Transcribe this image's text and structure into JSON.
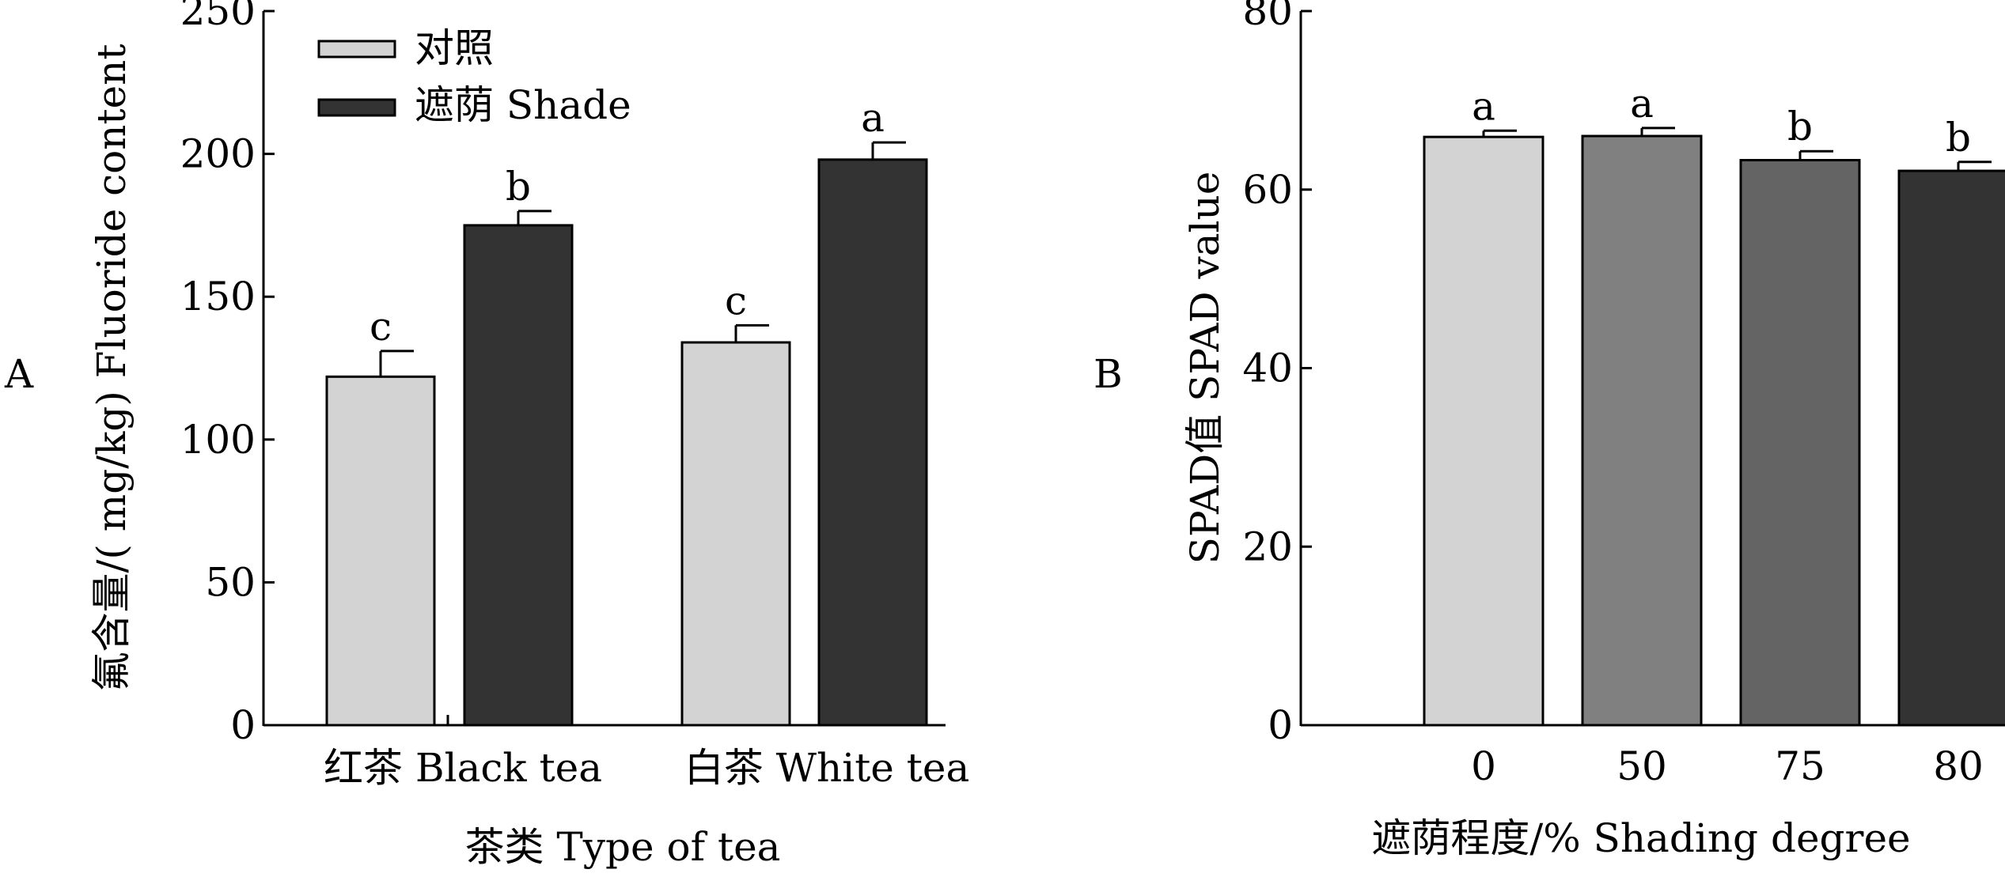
{
  "panels": {
    "a": {
      "label": "A"
    },
    "b": {
      "label": "B"
    }
  },
  "colors": {
    "control": "#d3d3d3",
    "shade": "#333333",
    "shade50": "#808080",
    "shade75": "#646464",
    "shade80": "#333333"
  },
  "chart_data": [
    {
      "type": "bar",
      "panel": "A",
      "xlabel": "茶类 Type of tea",
      "ylabel": "氟含量/( mg/kg)  Fluoride content",
      "ylim": [
        0,
        250
      ],
      "yticks": [
        0,
        50,
        100,
        150,
        200,
        250
      ],
      "categories": [
        "红茶 Black tea",
        "白茶 White tea"
      ],
      "legend_position": "top-left",
      "series": [
        {
          "name": "对照",
          "values": [
            122,
            134
          ],
          "errors": [
            9,
            6
          ],
          "labels": [
            "c",
            "c"
          ]
        },
        {
          "name": "遮荫 Shade",
          "values": [
            175,
            198
          ],
          "errors": [
            5,
            6
          ],
          "labels": [
            "b",
            "a"
          ]
        }
      ]
    },
    {
      "type": "bar",
      "panel": "B",
      "xlabel": "遮荫程度/%  Shading degree",
      "ylabel": "SPAD值  SPAD value",
      "ylim": [
        0,
        80
      ],
      "yticks": [
        0,
        20,
        40,
        60,
        80
      ],
      "categories": [
        "0",
        "50",
        "75",
        "80"
      ],
      "values": [
        65.9,
        66.0,
        63.3,
        62.1
      ],
      "errors": [
        0.7,
        0.9,
        1.0,
        1.0
      ],
      "labels": [
        "a",
        "a",
        "b",
        "b"
      ]
    }
  ]
}
